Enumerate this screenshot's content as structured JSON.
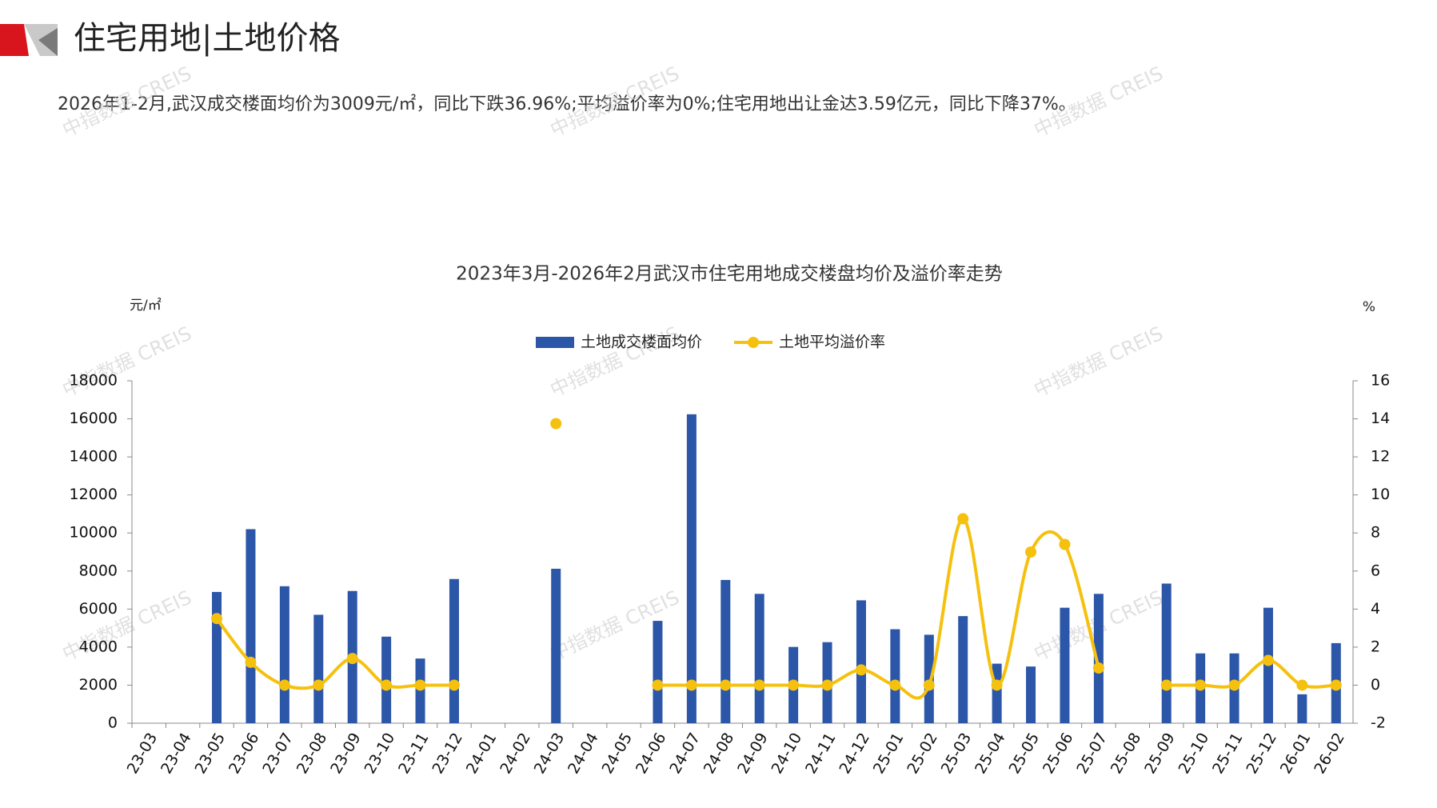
{
  "header": {
    "title": "住宅用地|土地价格"
  },
  "summary": "2026年1-2月,武汉成交楼面均价为3009元/㎡，同比下跌36.96%;平均溢价率为0%;住宅用地出让金达3.59亿元，同比下降37%。",
  "watermark": "中指数据 CREIS",
  "chart_data": {
    "type": "bar",
    "title": "2023年3月-2026年2月武汉市住宅用地成交楼盘均价及溢价率走势",
    "y_label": "元/㎡",
    "y2_label": "%",
    "categories": [
      "23-03",
      "23-04",
      "23-05",
      "23-06",
      "23-07",
      "23-08",
      "23-09",
      "23-10",
      "23-11",
      "23-12",
      "24-01",
      "24-02",
      "24-03",
      "24-04",
      "24-05",
      "24-06",
      "24-07",
      "24-08",
      "24-09",
      "24-10",
      "24-11",
      "24-12",
      "25-01",
      "25-02",
      "25-03",
      "25-04",
      "25-05",
      "25-06",
      "25-07",
      "25-08",
      "25-09",
      "25-10",
      "25-11",
      "25-12",
      "26-01",
      "26-02"
    ],
    "series": [
      {
        "name": "土地成交楼面均价",
        "type": "bar",
        "color": "#2c56a8",
        "values": [
          null,
          null,
          6900,
          10200,
          7200,
          5700,
          6950,
          4550,
          3400,
          7580,
          null,
          null,
          8120,
          null,
          null,
          5380,
          16240,
          7530,
          6800,
          4010,
          4260,
          6460,
          4940,
          4650,
          5630,
          3130,
          2980,
          6070,
          6800,
          null,
          7340,
          3670,
          3670,
          6070,
          1520,
          4210
        ]
      },
      {
        "name": "土地平均溢价率",
        "type": "line",
        "axis": "y2",
        "color": "#f5c10e",
        "values": [
          null,
          null,
          3.5,
          1.2,
          0,
          0,
          1.4,
          0,
          0,
          0,
          null,
          null,
          13.75,
          null,
          null,
          0,
          0,
          0,
          0,
          0,
          0,
          0.8,
          0,
          0,
          8.75,
          0,
          7.0,
          7.4,
          0.9,
          null,
          0,
          0,
          0,
          1.3,
          0,
          0
        ]
      }
    ],
    "ylim": [
      0,
      18000
    ],
    "yticks": [
      0,
      2000,
      4000,
      6000,
      8000,
      10000,
      12000,
      14000,
      16000,
      18000
    ],
    "y2lim": [
      -2,
      16
    ],
    "y2ticks": [
      -2,
      0,
      2,
      4,
      6,
      8,
      10,
      12,
      14,
      16
    ],
    "grid": false,
    "legend": "top"
  }
}
